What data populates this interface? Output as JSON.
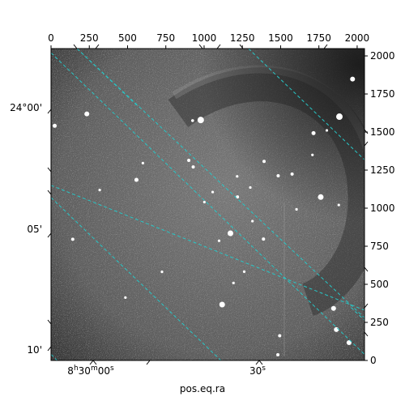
{
  "chart_data": {
    "type": "heatmap",
    "xlabel": "pos.eq.ra",
    "ylabel": "",
    "title": "",
    "pixel_axes": {
      "x_ticks": [
        0,
        250,
        500,
        750,
        1000,
        1250,
        1500,
        1750,
        2000
      ],
      "y_ticks": [
        0,
        250,
        500,
        750,
        1000,
        1250,
        1500,
        1750,
        2000
      ],
      "xlim": [
        0,
        2048
      ],
      "ylim": [
        0,
        2048
      ]
    },
    "world_axes": {
      "ra_tick_labels": [
        "8h30m00s",
        "30s"
      ],
      "dec_tick_labels": [
        "24°00'",
        "05'",
        "10'"
      ]
    },
    "grid": true,
    "grid_color": "#27c7c7",
    "colormap": "gray",
    "image_description_free": true,
    "bright_sources": [
      [
        978,
        1579,
        4
      ],
      [
        1884,
        1601,
        4
      ],
      [
        1762,
        1073,
        3.5
      ],
      [
        234,
        1619,
        3
      ],
      [
        558,
        1186,
        2.5
      ],
      [
        1172,
        835,
        3.5
      ],
      [
        1118,
        367,
        3.5
      ],
      [
        1846,
        342,
        3
      ],
      [
        1864,
        203,
        3
      ],
      [
        1970,
        1848,
        3
      ],
      [
        24,
        1541,
        2.5
      ],
      [
        1715,
        1493,
        2.5
      ],
      [
        1575,
        1224,
        2
      ],
      [
        1484,
        1213,
        2
      ],
      [
        1392,
        1307,
        2
      ],
      [
        925,
        1575,
        1.8
      ],
      [
        900,
        1314,
        2
      ],
      [
        929,
        1271,
        2
      ],
      [
        142,
        796,
        2
      ],
      [
        1218,
        1074,
        2
      ],
      [
        1388,
        797,
        2
      ],
      [
        1947,
        117,
        3
      ],
      [
        1482,
        37,
        2
      ],
      [
        1494,
        162,
        2
      ],
      [
        1302,
        1136,
        1.6
      ],
      [
        1216,
        1209,
        1.6
      ],
      [
        1316,
        915,
        1.6
      ],
      [
        1098,
        786,
        1.6
      ],
      [
        1056,
        1106,
        1.6
      ],
      [
        1262,
        583,
        1.6
      ],
      [
        1192,
        509,
        1.6
      ],
      [
        1002,
        1040,
        1.6
      ],
      [
        725,
        582,
        1.6
      ],
      [
        600,
        1296,
        1.6
      ],
      [
        318,
        1119,
        1.6
      ],
      [
        1604,
        992,
        1.6
      ],
      [
        1802,
        1511,
        1.6
      ],
      [
        1880,
        1021,
        1.6
      ],
      [
        486,
        413,
        1.6
      ],
      [
        1708,
        1350,
        1.6
      ]
    ],
    "ra_grid_lines": [
      [
        [
          170,
          2048
        ],
        [
          560,
          1676
        ]
      ],
      [
        [
          1960,
          348
        ],
        [
          2048,
          264
        ]
      ],
      [
        [
          1290,
          2048
        ],
        [
          2048,
          1318
        ]
      ],
      [
        [
          0,
          1070
        ],
        [
          1110,
          0
        ]
      ],
      [
        [
          0,
          40
        ],
        [
          40,
          0
        ]
      ]
    ],
    "dec_grid_lines": [
      [
        [
          0,
          2020
        ],
        [
          2048,
          40
        ]
      ],
      [
        [
          0,
          1150
        ],
        [
          2048,
          330
        ]
      ],
      [
        [
          170,
          2048
        ],
        [
          2048,
          280
        ]
      ]
    ]
  }
}
